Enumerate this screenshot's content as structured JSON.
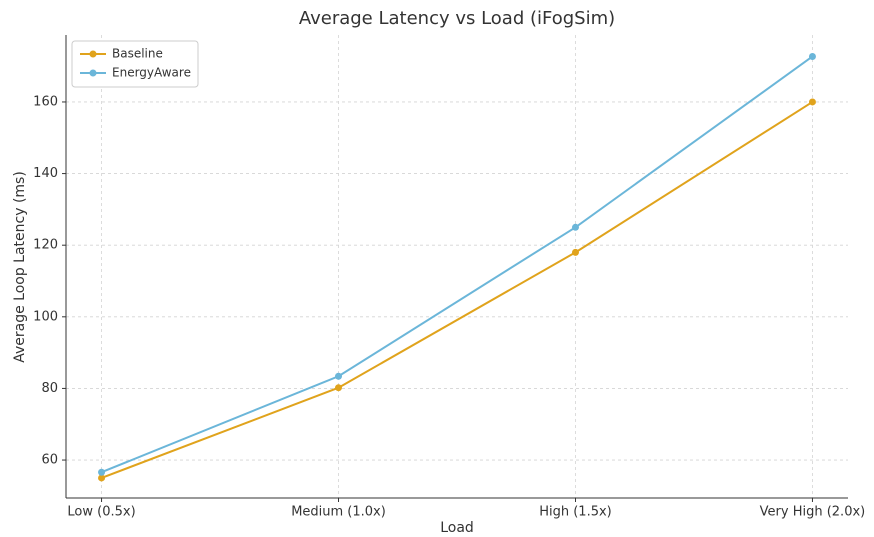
{
  "chart_data": {
    "type": "line",
    "title": "Average Latency vs Load (iFogSim)",
    "x_label": "Load",
    "y_label": "Average Loop Latency (ms)",
    "categories": [
      "Low (0.5x)",
      "Medium (1.0x)",
      "High (1.5x)",
      "Very High (2.0x)"
    ],
    "series": [
      {
        "name": "Baseline",
        "color": "#e0a31c",
        "values": [
          55,
          80.2,
          118,
          160
        ]
      },
      {
        "name": "EnergyAware",
        "color": "#6bb6d9",
        "values": [
          56.6,
          83.4,
          125,
          172.7
        ]
      }
    ],
    "ylim": [
      49.4,
      178.7
    ],
    "yticks": [
      60,
      80,
      100,
      120,
      140,
      160
    ],
    "grid": true,
    "legend": "upper left"
  }
}
